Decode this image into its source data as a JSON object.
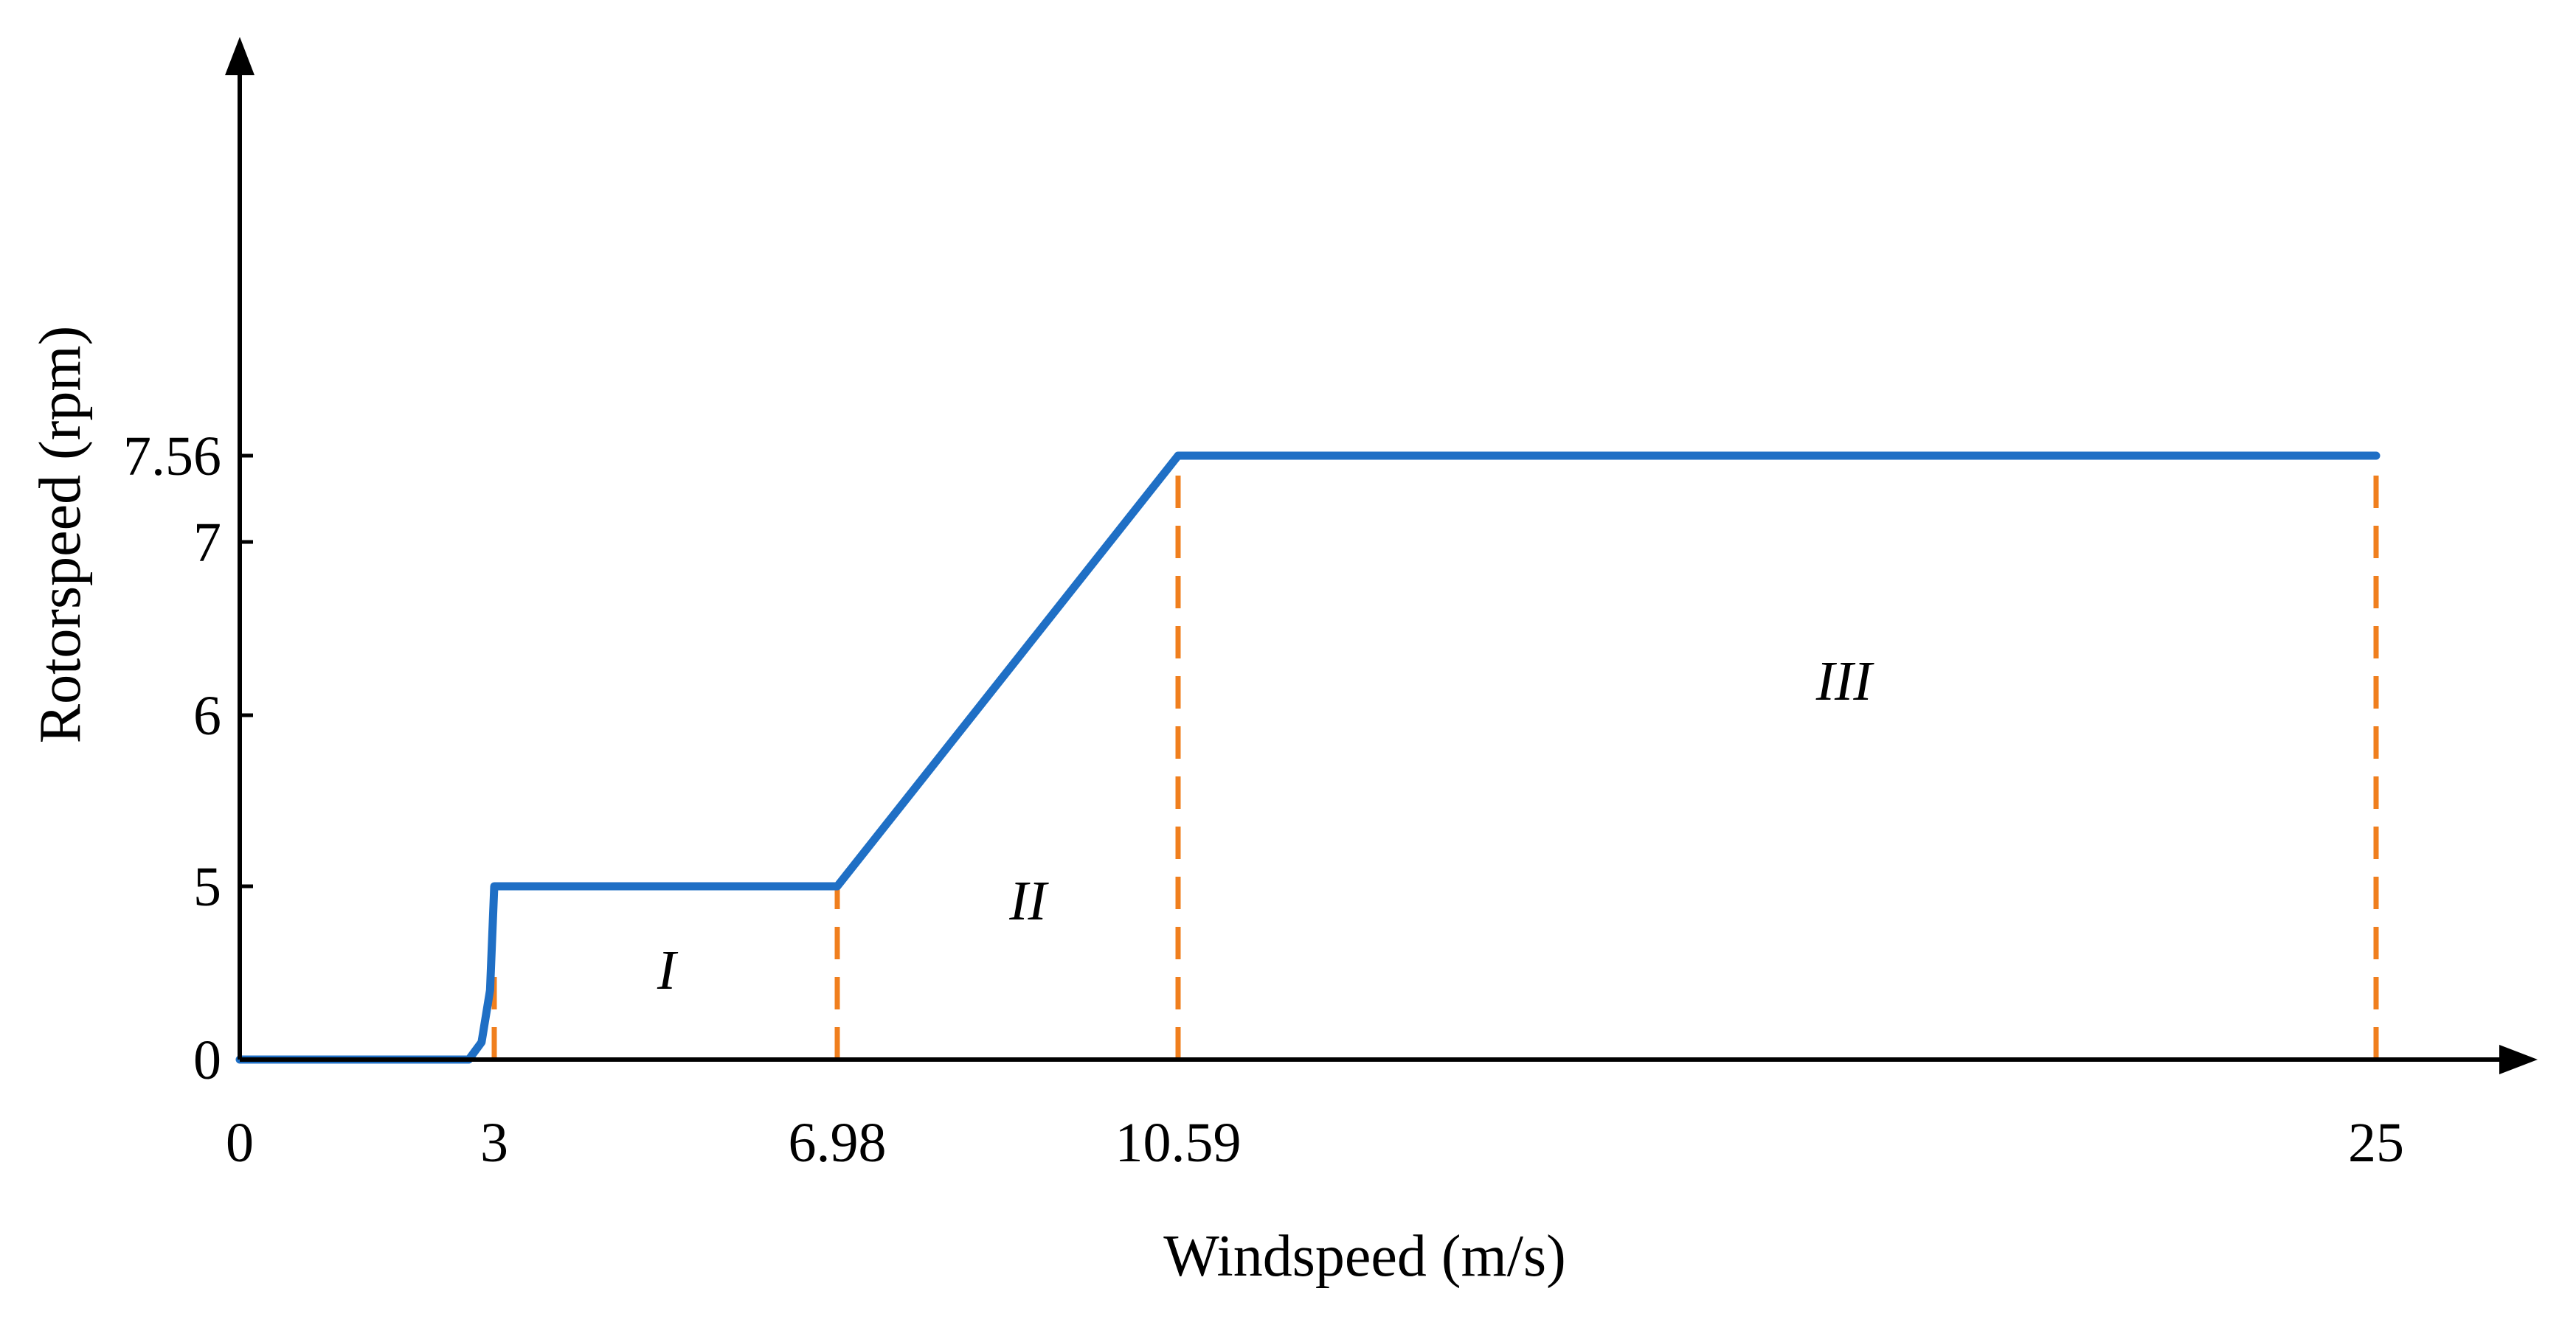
{
  "chart_data": {
    "type": "line",
    "title": "",
    "xlabel": "Windspeed (m/s)",
    "ylabel": "Rotorspeed (rpm)",
    "x_ticks": [
      0,
      3,
      6.98,
      10.59,
      25
    ],
    "x_tick_labels": [
      "0",
      "3",
      "6.98",
      "10.59",
      "25"
    ],
    "y_ticks": [
      0,
      5,
      6,
      7,
      7.56
    ],
    "y_tick_labels": [
      "0",
      "5",
      "6",
      "7",
      "7.56"
    ],
    "grid": false,
    "legend": "none",
    "series": [
      {
        "color": "#1f6fc5",
        "points": [
          {
            "x": 0,
            "y": 0
          },
          {
            "x": 2.7,
            "y": 0
          },
          {
            "x": 2.85,
            "y": 0.5
          },
          {
            "x": 2.95,
            "y": 2
          },
          {
            "x": 3,
            "y": 5
          },
          {
            "x": 6.98,
            "y": 5
          },
          {
            "x": 10.59,
            "y": 7.56
          },
          {
            "x": 25,
            "y": 7.56
          }
        ]
      }
    ],
    "reference_lines": [
      {
        "x": 3,
        "y_top": 2.5,
        "color": "#f07f1e",
        "style": "dashed"
      },
      {
        "x": 6.98,
        "y_top": 5,
        "color": "#f07f1e",
        "style": "dashed"
      },
      {
        "x": 10.59,
        "y_top": 7.56,
        "color": "#f07f1e",
        "style": "dashed"
      },
      {
        "x": 25,
        "y_top": 7.56,
        "color": "#f07f1e",
        "style": "dashed"
      }
    ],
    "annotations": [
      {
        "text": "I",
        "x": 5.0,
        "y": 2.6
      },
      {
        "text": "II",
        "x": 9.0,
        "y": 4.6
      },
      {
        "text": "III",
        "x": 18.6,
        "y": 6.2
      }
    ]
  }
}
